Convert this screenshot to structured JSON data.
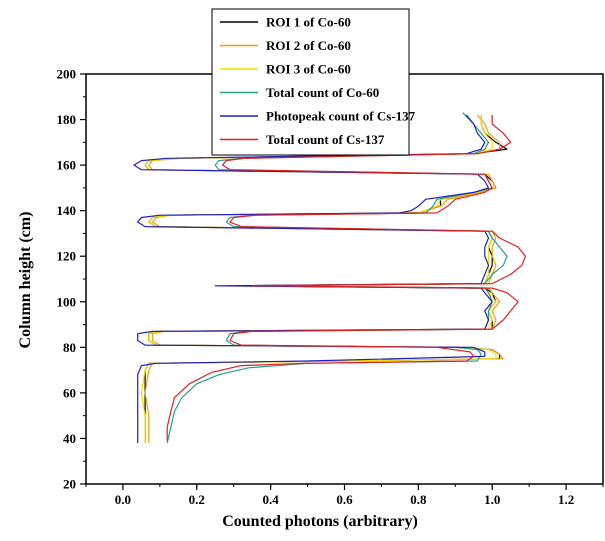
{
  "chart_data": {
    "type": "line",
    "xlabel": "Counted photons (arbitrary)",
    "ylabel": "Column height (cm)",
    "xlim": [
      -0.1,
      1.3
    ],
    "ylim": [
      20,
      200
    ],
    "xticks": [
      0.0,
      0.2,
      0.4,
      0.6,
      0.8,
      1.0,
      1.2
    ],
    "xtick_labels": [
      "0.0",
      "0.2",
      "0.4",
      "0.6",
      "0.8",
      "1.0",
      "1.2"
    ],
    "yticks": [
      20,
      40,
      60,
      80,
      100,
      120,
      140,
      160,
      180,
      200
    ],
    "ytick_labels": [
      "20",
      "40",
      "60",
      "80",
      "100",
      "120",
      "140",
      "160",
      "180",
      "200"
    ],
    "grid": false,
    "legend_position": "top-center",
    "series": [
      {
        "name": "ROI 1 of Co-60",
        "color": "#000000",
        "points": [
          [
            0.06,
            38
          ],
          [
            0.06,
            50
          ],
          [
            0.06,
            60
          ],
          [
            0.06,
            70
          ],
          [
            0.07,
            73
          ],
          [
            0.6,
            74
          ],
          [
            1.02,
            75
          ],
          [
            1.02,
            77
          ],
          [
            1.0,
            79
          ],
          [
            0.9,
            80
          ],
          [
            0.09,
            81
          ],
          [
            0.07,
            83
          ],
          [
            0.07,
            86
          ],
          [
            0.1,
            87
          ],
          [
            1.0,
            88
          ],
          [
            1.0,
            92
          ],
          [
            0.99,
            96
          ],
          [
            1.01,
            100
          ],
          [
            1.0,
            104
          ],
          [
            0.98,
            106
          ],
          [
            0.3,
            107
          ],
          [
            0.98,
            108
          ],
          [
            0.99,
            112
          ],
          [
            1.0,
            116
          ],
          [
            1.0,
            120
          ],
          [
            0.99,
            124
          ],
          [
            1.0,
            128
          ],
          [
            0.99,
            131
          ],
          [
            0.09,
            133
          ],
          [
            0.07,
            135
          ],
          [
            0.08,
            137
          ],
          [
            0.12,
            138
          ],
          [
            0.8,
            139
          ],
          [
            0.86,
            142
          ],
          [
            0.86,
            145
          ],
          [
            0.96,
            148
          ],
          [
            1.01,
            150
          ],
          [
            1.0,
            153
          ],
          [
            0.98,
            156
          ],
          [
            0.07,
            158
          ],
          [
            0.06,
            160
          ],
          [
            0.07,
            162
          ],
          [
            0.15,
            163
          ],
          [
            0.95,
            165
          ],
          [
            1.04,
            167
          ],
          [
            1.01,
            170
          ],
          [
            0.98,
            174
          ],
          [
            0.97,
            178
          ],
          [
            0.97,
            182
          ]
        ]
      },
      {
        "name": "ROI 2 of Co-60",
        "color": "#f0a000",
        "points": [
          [
            0.07,
            38
          ],
          [
            0.07,
            50
          ],
          [
            0.06,
            60
          ],
          [
            0.07,
            70
          ],
          [
            0.08,
            73
          ],
          [
            0.6,
            74
          ],
          [
            1.03,
            75
          ],
          [
            1.02,
            77
          ],
          [
            1.0,
            79
          ],
          [
            0.9,
            80
          ],
          [
            0.1,
            81
          ],
          [
            0.08,
            83
          ],
          [
            0.08,
            86
          ],
          [
            0.11,
            87
          ],
          [
            1.0,
            88
          ],
          [
            1.01,
            92
          ],
          [
            1.0,
            96
          ],
          [
            1.02,
            100
          ],
          [
            1.0,
            104
          ],
          [
            0.99,
            106
          ],
          [
            0.3,
            107
          ],
          [
            0.99,
            108
          ],
          [
            1.0,
            112
          ],
          [
            1.01,
            116
          ],
          [
            1.0,
            120
          ],
          [
            1.0,
            124
          ],
          [
            1.01,
            128
          ],
          [
            1.0,
            131
          ],
          [
            0.1,
            133
          ],
          [
            0.08,
            135
          ],
          [
            0.09,
            137
          ],
          [
            0.13,
            138
          ],
          [
            0.8,
            139
          ],
          [
            0.86,
            142
          ],
          [
            0.88,
            145
          ],
          [
            0.97,
            148
          ],
          [
            1.01,
            150
          ],
          [
            1.0,
            153
          ],
          [
            0.99,
            156
          ],
          [
            0.08,
            158
          ],
          [
            0.07,
            160
          ],
          [
            0.08,
            162
          ],
          [
            0.16,
            163
          ],
          [
            0.96,
            165
          ],
          [
            1.02,
            167
          ],
          [
            1.02,
            170
          ],
          [
            0.99,
            174
          ],
          [
            0.98,
            178
          ],
          [
            0.96,
            182
          ]
        ]
      },
      {
        "name": "ROI 3 of Co-60",
        "color": "#f0e000",
        "points": [
          [
            0.06,
            38
          ],
          [
            0.06,
            50
          ],
          [
            0.05,
            60
          ],
          [
            0.06,
            70
          ],
          [
            0.07,
            73
          ],
          [
            0.6,
            74
          ],
          [
            1.01,
            75
          ],
          [
            1.01,
            77
          ],
          [
            0.99,
            79
          ],
          [
            0.9,
            80
          ],
          [
            0.09,
            81
          ],
          [
            0.07,
            83
          ],
          [
            0.07,
            86
          ],
          [
            0.1,
            87
          ],
          [
            0.99,
            88
          ],
          [
            1.0,
            92
          ],
          [
            0.99,
            96
          ],
          [
            1.01,
            100
          ],
          [
            0.99,
            104
          ],
          [
            0.98,
            106
          ],
          [
            0.3,
            107
          ],
          [
            0.98,
            108
          ],
          [
            0.99,
            112
          ],
          [
            0.99,
            116
          ],
          [
            0.99,
            120
          ],
          [
            0.99,
            124
          ],
          [
            1.0,
            128
          ],
          [
            0.99,
            131
          ],
          [
            0.09,
            133
          ],
          [
            0.07,
            135
          ],
          [
            0.08,
            137
          ],
          [
            0.12,
            138
          ],
          [
            0.8,
            139
          ],
          [
            0.85,
            142
          ],
          [
            0.86,
            145
          ],
          [
            0.96,
            148
          ],
          [
            1.0,
            150
          ],
          [
            0.99,
            153
          ],
          [
            0.98,
            156
          ],
          [
            0.07,
            158
          ],
          [
            0.06,
            160
          ],
          [
            0.07,
            162
          ],
          [
            0.15,
            163
          ],
          [
            0.95,
            165
          ],
          [
            1.0,
            167
          ],
          [
            1.0,
            170
          ],
          [
            0.98,
            174
          ],
          [
            0.97,
            178
          ],
          [
            0.97,
            182
          ]
        ]
      },
      {
        "name": "Total count of Co-60",
        "color": "#2a9d8f",
        "points": [
          [
            0.12,
            38
          ],
          [
            0.13,
            45
          ],
          [
            0.14,
            52
          ],
          [
            0.16,
            58
          ],
          [
            0.2,
            64
          ],
          [
            0.26,
            68
          ],
          [
            0.34,
            71
          ],
          [
            0.5,
            73
          ],
          [
            0.96,
            74
          ],
          [
            0.97,
            77
          ],
          [
            0.96,
            79
          ],
          [
            0.9,
            80
          ],
          [
            0.3,
            81
          ],
          [
            0.28,
            83
          ],
          [
            0.29,
            86
          ],
          [
            0.33,
            87
          ],
          [
            0.98,
            88
          ],
          [
            0.99,
            92
          ],
          [
            0.99,
            96
          ],
          [
            1.0,
            100
          ],
          [
            0.99,
            104
          ],
          [
            0.98,
            106
          ],
          [
            0.3,
            107
          ],
          [
            0.98,
            108
          ],
          [
            1.0,
            112
          ],
          [
            1.03,
            116
          ],
          [
            1.04,
            120
          ],
          [
            1.02,
            124
          ],
          [
            1.0,
            128
          ],
          [
            0.99,
            131
          ],
          [
            0.3,
            133
          ],
          [
            0.28,
            135
          ],
          [
            0.29,
            137
          ],
          [
            0.35,
            138
          ],
          [
            0.82,
            139
          ],
          [
            0.84,
            142
          ],
          [
            0.85,
            145
          ],
          [
            0.95,
            148
          ],
          [
            1.0,
            150
          ],
          [
            0.99,
            153
          ],
          [
            0.98,
            156
          ],
          [
            0.26,
            158
          ],
          [
            0.25,
            160
          ],
          [
            0.26,
            162
          ],
          [
            0.32,
            163
          ],
          [
            0.95,
            165
          ],
          [
            0.98,
            167
          ],
          [
            0.99,
            170
          ],
          [
            0.97,
            174
          ],
          [
            0.95,
            178
          ],
          [
            0.92,
            183
          ]
        ]
      },
      {
        "name": "Photopeak count of Cs-137",
        "color": "#1f1fc0",
        "points": [
          [
            0.04,
            38
          ],
          [
            0.04,
            50
          ],
          [
            0.04,
            60
          ],
          [
            0.04,
            68
          ],
          [
            0.05,
            72
          ],
          [
            0.09,
            73
          ],
          [
            0.5,
            74
          ],
          [
            0.98,
            76
          ],
          [
            0.98,
            78
          ],
          [
            0.95,
            80
          ],
          [
            0.06,
            81
          ],
          [
            0.04,
            83
          ],
          [
            0.04,
            86
          ],
          [
            0.08,
            87
          ],
          [
            0.98,
            88
          ],
          [
            0.99,
            92
          ],
          [
            0.98,
            96
          ],
          [
            1.0,
            100
          ],
          [
            0.98,
            104
          ],
          [
            0.97,
            106
          ],
          [
            0.25,
            107
          ],
          [
            0.97,
            108
          ],
          [
            0.98,
            112
          ],
          [
            0.99,
            116
          ],
          [
            0.98,
            120
          ],
          [
            0.98,
            124
          ],
          [
            0.99,
            128
          ],
          [
            0.98,
            131
          ],
          [
            0.06,
            133
          ],
          [
            0.04,
            135
          ],
          [
            0.05,
            137
          ],
          [
            0.1,
            138
          ],
          [
            0.75,
            139
          ],
          [
            0.78,
            140
          ],
          [
            0.8,
            142
          ],
          [
            0.82,
            145
          ],
          [
            0.95,
            148
          ],
          [
            0.99,
            150
          ],
          [
            0.98,
            153
          ],
          [
            0.96,
            156
          ],
          [
            0.05,
            158
          ],
          [
            0.03,
            160
          ],
          [
            0.05,
            162
          ],
          [
            0.12,
            163
          ],
          [
            0.93,
            165
          ],
          [
            0.97,
            167
          ],
          [
            0.98,
            170
          ],
          [
            0.96,
            174
          ],
          [
            0.95,
            178
          ],
          [
            0.93,
            182
          ]
        ]
      },
      {
        "name": "Total count of Cs-137",
        "color": "#e02020",
        "points": [
          [
            0.12,
            39
          ],
          [
            0.12,
            45
          ],
          [
            0.13,
            52
          ],
          [
            0.14,
            58
          ],
          [
            0.18,
            64
          ],
          [
            0.24,
            69
          ],
          [
            0.32,
            72
          ],
          [
            0.5,
            73
          ],
          [
            0.93,
            74
          ],
          [
            0.95,
            76
          ],
          [
            0.94,
            78
          ],
          [
            0.85,
            80
          ],
          [
            0.32,
            81
          ],
          [
            0.29,
            83
          ],
          [
            0.3,
            86
          ],
          [
            0.35,
            87
          ],
          [
            1.0,
            88
          ],
          [
            1.03,
            92
          ],
          [
            1.05,
            96
          ],
          [
            1.07,
            100
          ],
          [
            1.04,
            104
          ],
          [
            1.0,
            106
          ],
          [
            0.35,
            107
          ],
          [
            1.0,
            108
          ],
          [
            1.05,
            112
          ],
          [
            1.08,
            116
          ],
          [
            1.09,
            120
          ],
          [
            1.07,
            124
          ],
          [
            1.02,
            128
          ],
          [
            1.0,
            131
          ],
          [
            0.32,
            133
          ],
          [
            0.29,
            135
          ],
          [
            0.3,
            137
          ],
          [
            0.36,
            138
          ],
          [
            0.85,
            139
          ],
          [
            0.88,
            142
          ],
          [
            0.9,
            145
          ],
          [
            0.98,
            148
          ],
          [
            1.0,
            150
          ],
          [
            0.99,
            153
          ],
          [
            0.98,
            156
          ],
          [
            0.29,
            158
          ],
          [
            0.27,
            160
          ],
          [
            0.28,
            162
          ],
          [
            0.33,
            163
          ],
          [
            0.96,
            165
          ],
          [
            1.02,
            167
          ],
          [
            1.05,
            170
          ],
          [
            1.03,
            174
          ],
          [
            1.0,
            178
          ],
          [
            1.0,
            182
          ]
        ]
      }
    ]
  }
}
